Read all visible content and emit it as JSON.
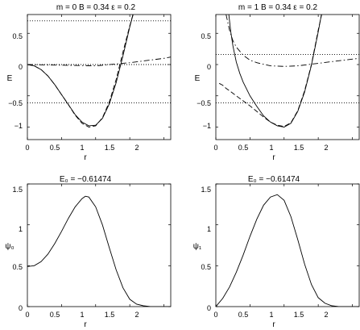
{
  "chart_data": [
    {
      "type": "line",
      "title": "m = 0   B = 0.34   ε = 0.2",
      "xlabel": "r",
      "ylabel": "E",
      "xlim": [
        0,
        2.1
      ],
      "ylim": [
        -1.2,
        0.8
      ],
      "xticks": [
        0,
        0.5,
        1,
        1.5,
        2
      ],
      "yticks": [
        -1,
        -0.5,
        0,
        0.5
      ],
      "series": [
        {
          "style": "solid",
          "x": [
            0,
            0.1,
            0.2,
            0.3,
            0.4,
            0.5,
            0.6,
            0.7,
            0.8,
            0.9,
            1.0,
            1.1,
            1.2,
            1.3,
            1.4,
            1.5,
            1.55,
            1.6,
            1.65
          ],
          "y": [
            0,
            -0.02,
            -0.08,
            -0.18,
            -0.32,
            -0.48,
            -0.64,
            -0.8,
            -0.92,
            -0.98,
            -0.97,
            -0.86,
            -0.63,
            -0.29,
            0.14,
            0.6,
            0.82,
            0.9,
            0.9
          ]
        },
        {
          "style": "dashed",
          "x": [
            0,
            0.1,
            0.2,
            0.3,
            0.4,
            0.5,
            0.6,
            0.7,
            0.8,
            0.9,
            1.0,
            1.1,
            1.2,
            1.3,
            1.4,
            1.5,
            1.55,
            1.6
          ],
          "y": [
            0,
            -0.02,
            -0.08,
            -0.18,
            -0.32,
            -0.48,
            -0.64,
            -0.81,
            -0.94,
            -1.0,
            -0.98,
            -0.85,
            -0.6,
            -0.24,
            0.2,
            0.62,
            0.8,
            0.9
          ]
        },
        {
          "style": "dashdot",
          "x": [
            0,
            0.5,
            1.0,
            1.5,
            2.0,
            2.1
          ],
          "y": [
            0,
            -0.01,
            -0.02,
            0.03,
            0.1,
            0.12
          ]
        },
        {
          "style": "dotted",
          "x": [
            0,
            2.1
          ],
          "y": [
            0.7,
            0.7
          ]
        },
        {
          "style": "dotted",
          "x": [
            0,
            2.1
          ],
          "y": [
            0.0,
            0.0
          ]
        },
        {
          "style": "dotted",
          "x": [
            0,
            2.1
          ],
          "y": [
            -0.61474,
            -0.61474
          ]
        }
      ]
    },
    {
      "type": "line",
      "title": "m = 1   B = 0.34   ε = 0.2",
      "xlabel": "r",
      "ylabel": "E",
      "xlim": [
        0,
        2.1
      ],
      "ylim": [
        -1.2,
        0.8
      ],
      "xticks": [
        0,
        0.5,
        1,
        1.5,
        2
      ],
      "yticks": [
        -1,
        -0.5,
        0,
        0.5
      ],
      "series": [
        {
          "style": "solid",
          "x": [
            0.19,
            0.22,
            0.25,
            0.3,
            0.35,
            0.4,
            0.5,
            0.6,
            0.7,
            0.8,
            0.9,
            1.0,
            1.1,
            1.2,
            1.3,
            1.4,
            1.5,
            1.55,
            1.6
          ],
          "y": [
            0.8,
            0.52,
            0.3,
            0.04,
            -0.14,
            -0.28,
            -0.5,
            -0.67,
            -0.82,
            -0.92,
            -0.98,
            -1.0,
            -0.94,
            -0.75,
            -0.44,
            -0.01,
            0.52,
            0.82,
            0.85
          ]
        },
        {
          "style": "dashed",
          "x": [
            0.05,
            0.1,
            0.15,
            0.2,
            0.3,
            0.4,
            0.5,
            0.6,
            0.7,
            0.8,
            0.9,
            1.0,
            1.1,
            1.2,
            1.3,
            1.4,
            1.5,
            1.55,
            1.6
          ],
          "y": [
            -0.3,
            -0.33,
            -0.38,
            -0.42,
            -0.5,
            -0.58,
            -0.66,
            -0.75,
            -0.84,
            -0.92,
            -0.97,
            -0.99,
            -0.93,
            -0.74,
            -0.42,
            0.0,
            0.55,
            0.8,
            0.82
          ]
        },
        {
          "style": "dashdot",
          "x": [
            0.15,
            0.2,
            0.25,
            0.3,
            0.4,
            0.5,
            0.6,
            0.8,
            1.0,
            1.2,
            1.5,
            1.8,
            2.1
          ],
          "y": [
            0.8,
            0.55,
            0.38,
            0.28,
            0.15,
            0.07,
            0.03,
            -0.02,
            -0.03,
            -0.02,
            0.02,
            0.06,
            0.1
          ]
        },
        {
          "style": "dotted",
          "x": [
            0,
            2.1
          ],
          "y": [
            0.16,
            0.16
          ]
        },
        {
          "style": "dotted",
          "x": [
            0,
            2.1
          ],
          "y": [
            -0.61474,
            -0.61474
          ]
        }
      ]
    },
    {
      "type": "line",
      "title": "E₀ = −0.61474",
      "xlabel": "r",
      "ylabel": "ψ₀",
      "xlim": [
        0,
        2.1
      ],
      "ylim": [
        0,
        1.5
      ],
      "xticks": [
        0,
        0.5,
        1,
        1.5,
        2
      ],
      "yticks": [
        0,
        0.5,
        1,
        1.5
      ],
      "series": [
        {
          "style": "solid",
          "x": [
            0,
            0.1,
            0.2,
            0.3,
            0.4,
            0.5,
            0.6,
            0.7,
            0.8,
            0.85,
            0.9,
            1.0,
            1.1,
            1.2,
            1.3,
            1.4,
            1.5,
            1.6,
            1.7,
            1.8,
            1.9,
            2.0,
            2.1
          ],
          "y": [
            0.49,
            0.5,
            0.55,
            0.64,
            0.77,
            0.92,
            1.08,
            1.22,
            1.32,
            1.35,
            1.34,
            1.22,
            1.0,
            0.72,
            0.45,
            0.23,
            0.09,
            0.03,
            0.01,
            0.0,
            0.0,
            0.0,
            0.0
          ]
        }
      ]
    },
    {
      "type": "line",
      "title": "E₀ = −0.61474",
      "xlabel": "r",
      "ylabel": "ψ₁",
      "xlim": [
        0,
        2.1
      ],
      "ylim": [
        0,
        1.5
      ],
      "xticks": [
        0,
        0.5,
        1,
        1.5,
        2
      ],
      "yticks": [
        0,
        0.5,
        1,
        1.5
      ],
      "series": [
        {
          "style": "solid",
          "x": [
            0,
            0.1,
            0.2,
            0.3,
            0.4,
            0.5,
            0.6,
            0.7,
            0.8,
            0.9,
            1.0,
            1.1,
            1.2,
            1.3,
            1.4,
            1.5,
            1.6,
            1.7,
            1.8,
            1.9,
            2.0,
            2.1
          ],
          "y": [
            0.0,
            0.1,
            0.24,
            0.42,
            0.63,
            0.86,
            1.07,
            1.24,
            1.34,
            1.37,
            1.3,
            1.1,
            0.82,
            0.52,
            0.27,
            0.11,
            0.04,
            0.01,
            0.0,
            0.0,
            0.0,
            0.0
          ]
        }
      ]
    }
  ]
}
